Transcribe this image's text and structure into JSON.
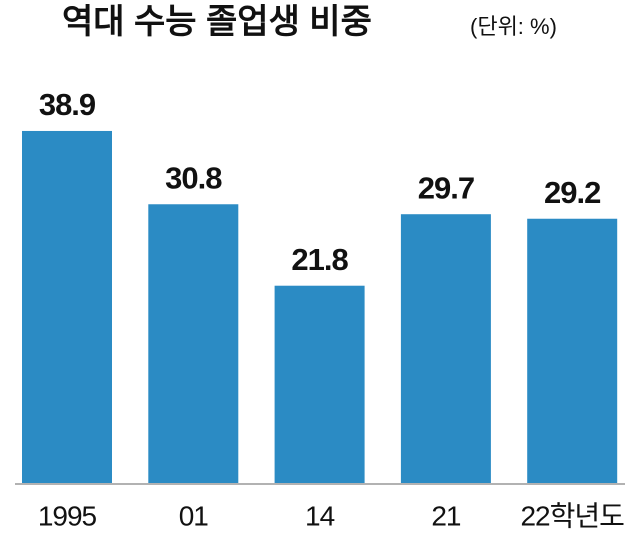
{
  "chart_data": {
    "type": "bar",
    "title": "역대 수능 졸업생 비중",
    "subtitle": "(단위: %)",
    "categories": [
      "1995",
      "01",
      "14",
      "21",
      "22학년도"
    ],
    "values": [
      38.9,
      30.8,
      21.8,
      29.7,
      29.2
    ],
    "color": "#2b8bc4"
  }
}
